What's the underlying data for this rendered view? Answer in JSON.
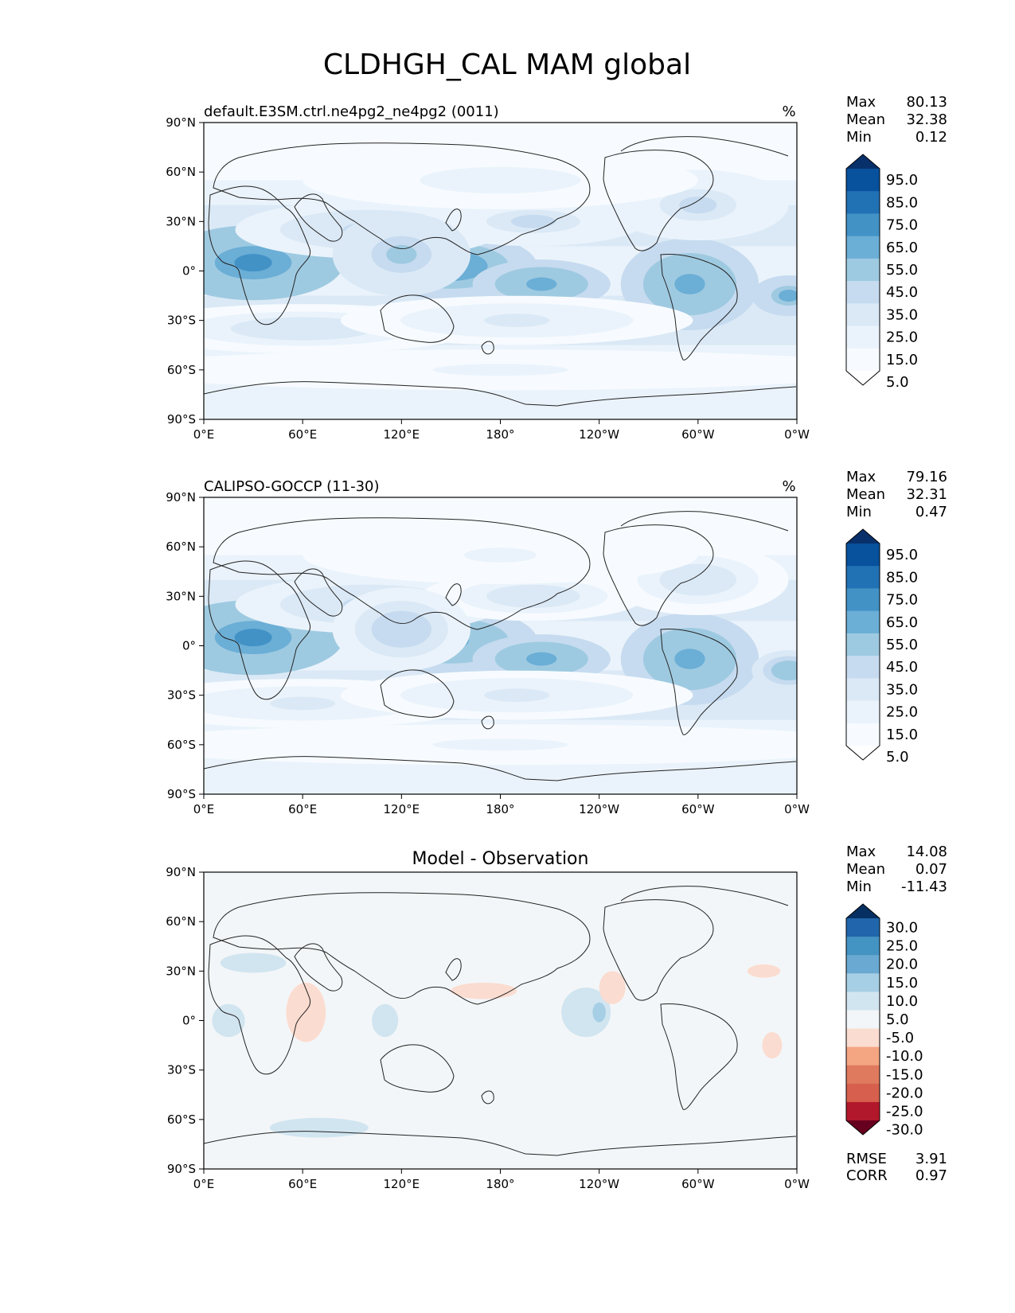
{
  "figure": {
    "title": "CLDHGH_CAL MAM global"
  },
  "axes": {
    "x_ticks": [
      "0°E",
      "60°E",
      "120°E",
      "180°",
      "120°W",
      "60°W",
      "0°W"
    ],
    "y_ticks": [
      "90°N",
      "60°N",
      "30°N",
      "0°",
      "30°S",
      "60°S",
      "90°S"
    ]
  },
  "chart_data": [
    {
      "type": "heatmap",
      "panel": "test",
      "title": "default.E3SM.ctrl.ne4pg2_ne4pg2 (0011)",
      "units": "%",
      "stats": [
        {
          "label": "Max",
          "value": "80.13"
        },
        {
          "label": "Mean",
          "value": "32.38"
        },
        {
          "label": "Min",
          "value": "0.12"
        }
      ],
      "colorbar": {
        "levels": [
          "95.0",
          "85.0",
          "75.0",
          "65.0",
          "55.0",
          "45.0",
          "35.0",
          "25.0",
          "15.0",
          "5.0"
        ],
        "colors": [
          "#08306b",
          "#08519c",
          "#2171b5",
          "#4292c6",
          "#6baed6",
          "#9ecae1",
          "#c6dbef",
          "#dbe9f6",
          "#eaf3fb",
          "#f7fbff",
          "#ffffff"
        ],
        "extend": "both"
      },
      "x_range": [
        0,
        360
      ],
      "y_range": [
        -90,
        90
      ]
    },
    {
      "type": "heatmap",
      "panel": "reference",
      "title": "CALIPSO-GOCCP (11-30)",
      "units": "%",
      "stats": [
        {
          "label": "Max",
          "value": "79.16"
        },
        {
          "label": "Mean",
          "value": "32.31"
        },
        {
          "label": "Min",
          "value": "0.47"
        }
      ],
      "colorbar": {
        "levels": [
          "95.0",
          "85.0",
          "75.0",
          "65.0",
          "55.0",
          "45.0",
          "35.0",
          "25.0",
          "15.0",
          "5.0"
        ],
        "colors": [
          "#08306b",
          "#08519c",
          "#2171b5",
          "#4292c6",
          "#6baed6",
          "#9ecae1",
          "#c6dbef",
          "#dbe9f6",
          "#eaf3fb",
          "#f7fbff",
          "#ffffff"
        ],
        "extend": "both"
      },
      "x_range": [
        0,
        360
      ],
      "y_range": [
        -90,
        90
      ]
    },
    {
      "type": "heatmap",
      "panel": "difference",
      "title": "Model - Observation",
      "units": "",
      "stats": [
        {
          "label": "Max",
          "value": "14.08"
        },
        {
          "label": "Mean",
          "value": "0.07"
        },
        {
          "label": "Min",
          "value": "-11.43"
        }
      ],
      "metrics": [
        {
          "label": "RMSE",
          "value": "3.91"
        },
        {
          "label": "CORR",
          "value": "0.97"
        }
      ],
      "colorbar": {
        "levels": [
          "30.0",
          "25.0",
          "20.0",
          "15.0",
          "10.0",
          "5.0",
          "-5.0",
          "-10.0",
          "-15.0",
          "-20.0",
          "-25.0",
          "-30.0"
        ],
        "colors": [
          "#053061",
          "#2166ac",
          "#4393c3",
          "#6aa9d1",
          "#a6cfe5",
          "#d1e5f0",
          "#f3f6f8",
          "#fbdcd0",
          "#f4a582",
          "#e07a5f",
          "#d6604d",
          "#b2182b",
          "#67001f"
        ],
        "extend": "both"
      },
      "x_range": [
        0,
        360
      ],
      "y_range": [
        -90,
        90
      ]
    }
  ]
}
